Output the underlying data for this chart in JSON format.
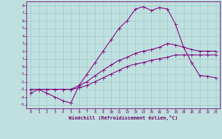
{
  "title": "",
  "xlabel": "Windchill (Refroidissement éolien,°C)",
  "bg_color": "#c0e0e0",
  "line_color": "#800080",
  "grid_color": "#a0c8c8",
  "xlim": [
    -0.5,
    23.5
  ],
  "ylim": [
    -5.5,
    8.5
  ],
  "xticks": [
    0,
    1,
    2,
    3,
    4,
    5,
    6,
    7,
    8,
    9,
    10,
    11,
    12,
    13,
    14,
    15,
    16,
    17,
    18,
    19,
    20,
    21,
    22,
    23
  ],
  "yticks": [
    -5,
    -4,
    -3,
    -2,
    -1,
    0,
    1,
    2,
    3,
    4,
    5,
    6,
    7,
    8
  ],
  "lines": [
    {
      "x": [
        0,
        1,
        2,
        3,
        4,
        5,
        6,
        7,
        8,
        9,
        10,
        11,
        12,
        13,
        14,
        15,
        16,
        17,
        18,
        19,
        20,
        21,
        22,
        23
      ],
      "y": [
        -3.5,
        -3,
        -3.5,
        -4,
        -4.5,
        -4.8,
        -2.5,
        -1,
        0.5,
        2,
        3.5,
        5,
        6,
        7.5,
        7.8,
        7.3,
        7.7,
        7.5,
        5.5,
        2.5,
        0.5,
        -1.2,
        -1.3,
        -1.5
      ]
    },
    {
      "x": [
        0,
        1,
        2,
        3,
        4,
        5,
        6,
        7,
        8,
        9,
        10,
        11,
        12,
        13,
        14,
        15,
        16,
        17,
        18,
        19,
        20,
        21,
        22,
        23
      ],
      "y": [
        -3,
        -3,
        -3,
        -3,
        -3,
        -3,
        -2.5,
        -2,
        -1.2,
        -0.5,
        0.2,
        0.8,
        1.2,
        1.7,
        2,
        2.2,
        2.5,
        3,
        2.8,
        2.5,
        2.2,
        2,
        2,
        2
      ]
    },
    {
      "x": [
        0,
        1,
        2,
        3,
        4,
        5,
        6,
        7,
        8,
        9,
        10,
        11,
        12,
        13,
        14,
        15,
        16,
        17,
        18,
        19,
        20,
        21,
        22,
        23
      ],
      "y": [
        -3,
        -3,
        -3,
        -3,
        -3,
        -3,
        -2.8,
        -2.5,
        -2,
        -1.5,
        -1,
        -0.5,
        0,
        0.3,
        0.5,
        0.8,
        1,
        1.2,
        1.5,
        1.5,
        1.5,
        1.5,
        1.5,
        1.5
      ]
    }
  ]
}
